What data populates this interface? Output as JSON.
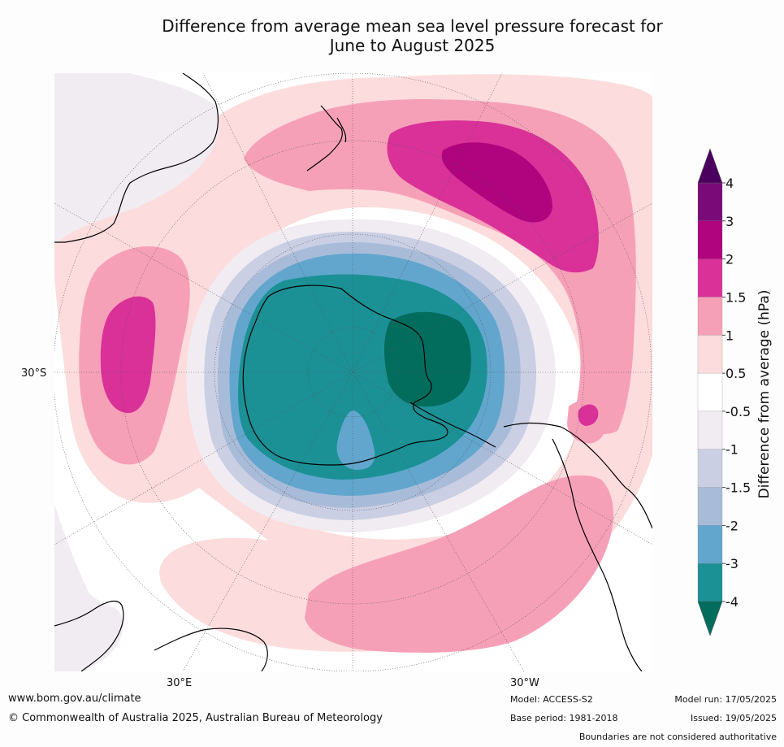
{
  "title": {
    "line1": "Difference from average mean sea level pressure forecast for",
    "line2": "June to August 2025"
  },
  "map": {
    "projection": "south polar stereographic",
    "latitude_label": "30°S",
    "longitude_labels": [
      "30°E",
      "30°W"
    ]
  },
  "colorbar": {
    "label": "Difference from average (hPa)",
    "ticks": [
      "4",
      "3",
      "2",
      "1.5",
      "1",
      "0.5",
      "-0.5",
      "-1",
      "-1.5",
      "-2",
      "-3",
      "-4"
    ],
    "colors": [
      "#4b0060",
      "#7a0a78",
      "#b0037e",
      "#d93198",
      "#f6a0b8",
      "#fcdcdc",
      "#ffffff",
      "#f1ecf2",
      "#cbcfe4",
      "#a8bcd9",
      "#62a6ce",
      "#1b9196",
      "#026c5d"
    ],
    "extend": "both"
  },
  "footer": {
    "website": "www.bom.gov.au/climate",
    "copyright": "© Commonwealth of Australia 2025, Australian Bureau of Meteorology",
    "model": "Model: ACCESS-S2",
    "base_period": "Base period: 1981-2018",
    "model_run": "Model run: 17/05/2025",
    "issued": "Issued: 19/05/2025",
    "disclaimer": "Boundaries are not considered authoritative"
  }
}
